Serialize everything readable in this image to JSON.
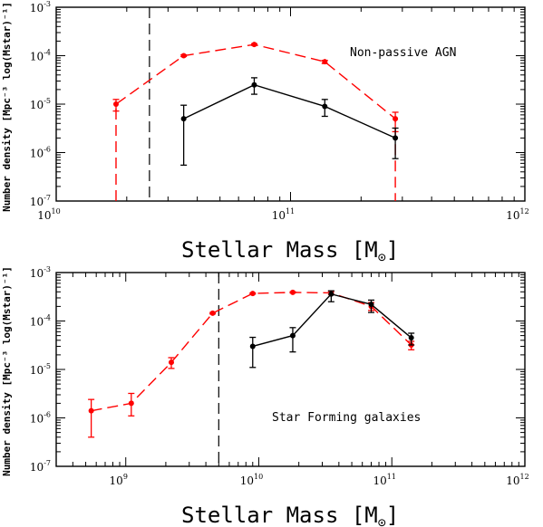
{
  "chart_data": [
    {
      "type": "line",
      "annotation": "Non-passive AGN",
      "xlabel_text": "Stellar Mass [M",
      "xlabel_sub": "⊙",
      "xlabel_close": "]",
      "ylabel": "Number density [Mpc⁻³ log(Mstar)⁻¹]",
      "xscale": "log",
      "yscale": "log",
      "xlim": [
        10000000000.0,
        1000000000000.0
      ],
      "ylim": [
        1e-07,
        0.001
      ],
      "x_ticks": [
        {
          "base": "10",
          "exp": "10"
        },
        {
          "base": "10",
          "exp": "11"
        },
        {
          "base": "10",
          "exp": "12"
        }
      ],
      "y_ticks": [
        {
          "base": "10",
          "exp": "-7"
        },
        {
          "base": "10",
          "exp": "-6"
        },
        {
          "base": "10",
          "exp": "-5"
        },
        {
          "base": "10",
          "exp": "-4"
        },
        {
          "base": "10",
          "exp": "-3"
        }
      ],
      "vline_x": 25000000000,
      "series": [
        {
          "color": "#ff0000",
          "dash": true,
          "marker": "circle",
          "x": [
            18000000000,
            35000000000,
            70000000000,
            140000000000,
            280000000000
          ],
          "y": [
            1e-05,
            0.0001,
            0.00017,
            7.5e-05,
            5e-06
          ],
          "err_low": [
            7.2e-06,
            9.6e-05,
            0.000163,
            6.9e-05,
            2.7e-06
          ],
          "err_high": [
            1.25e-05,
            0.000104,
            0.000177,
            8e-05,
            6.8e-06
          ],
          "extend_to_bottom": true
        },
        {
          "color": "#000000",
          "dash": false,
          "marker": "circle",
          "x": [
            35000000000,
            70000000000,
            140000000000,
            280000000000
          ],
          "y": [
            5e-06,
            2.5e-05,
            9e-06,
            2e-06
          ],
          "err_low": [
            5.5e-07,
            1.6e-05,
            5.6e-06,
            7.5e-07
          ],
          "err_high": [
            9.5e-06,
            3.5e-05,
            1.25e-05,
            3.2e-06
          ]
        }
      ]
    },
    {
      "type": "line",
      "annotation": "Star Forming galaxies",
      "xlabel_text": "Stellar Mass [M",
      "xlabel_sub": "⊙",
      "xlabel_close": "]",
      "ylabel": "Number density [Mpc⁻³ log(Mstar)⁻¹]",
      "xscale": "log",
      "yscale": "log",
      "xlim": [
        300000000,
        1000000000000.0
      ],
      "ylim": [
        1e-07,
        0.001
      ],
      "x_ticks": [
        {
          "base": "10",
          "exp": "9"
        },
        {
          "base": "10",
          "exp": "10"
        },
        {
          "base": "10",
          "exp": "11"
        },
        {
          "base": "10",
          "exp": "12"
        }
      ],
      "y_ticks": [
        {
          "base": "10",
          "exp": "-7"
        },
        {
          "base": "10",
          "exp": "-6"
        },
        {
          "base": "10",
          "exp": "-5"
        },
        {
          "base": "10",
          "exp": "-4"
        },
        {
          "base": "10",
          "exp": "-3"
        }
      ],
      "vline_x": 5000000000,
      "series": [
        {
          "color": "#ff0000",
          "dash": true,
          "marker": "circle",
          "x": [
            550000000,
            1100000000,
            2200000000,
            4500000000,
            9000000000,
            18000000000,
            35000000000,
            70000000000,
            140000000000
          ],
          "y": [
            1.4e-06,
            2e-06,
            1.4e-05,
            0.000145,
            0.00037,
            0.00039,
            0.00038,
            0.0002,
            3.2e-05
          ],
          "err_low": [
            4e-07,
            1.1e-06,
            1.05e-05,
            0.00014,
            0.00036,
            0.00038,
            0.00035,
            0.000165,
            2.55e-05
          ],
          "err_high": [
            2.4e-06,
            3.2e-06,
            1.75e-05,
            0.00015,
            0.00038,
            0.0004,
            0.00041,
            0.00024,
            3.8e-05
          ]
        },
        {
          "color": "#000000",
          "dash": false,
          "marker": "circle",
          "x": [
            9000000000,
            18000000000,
            35000000000,
            70000000000,
            140000000000
          ],
          "y": [
            3e-05,
            5e-05,
            0.00036,
            0.00022,
            4.5e-05
          ],
          "err_low": [
            1.1e-05,
            2.3e-05,
            0.00025,
            0.00015,
            3.2e-05
          ],
          "err_high": [
            4.6e-05,
            7.3e-05,
            0.00042,
            0.00027,
            5.6e-05
          ]
        }
      ]
    }
  ]
}
